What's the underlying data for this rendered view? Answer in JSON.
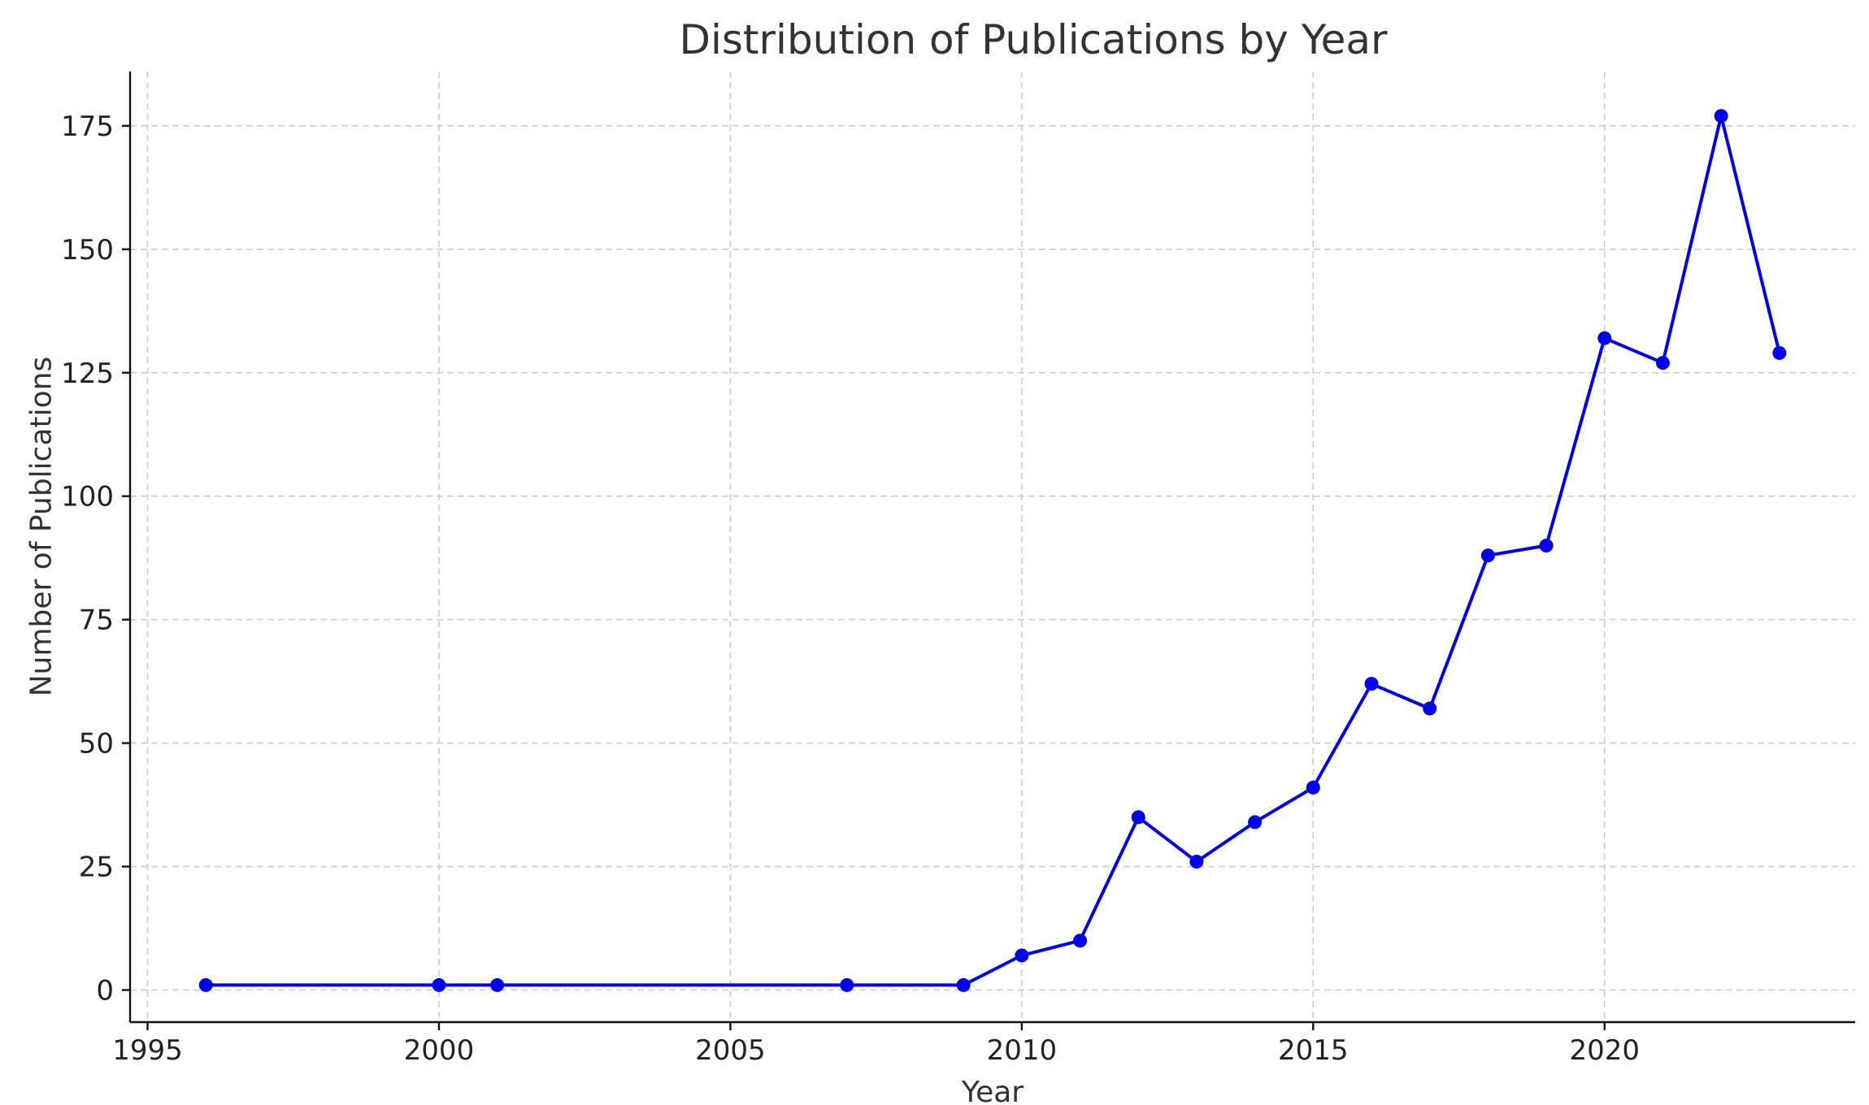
{
  "chart_data": {
    "type": "line",
    "title": "Distribution of Publications by Year",
    "xlabel": "Year",
    "ylabel": "Number of Publications",
    "xlim": [
      1994.7,
      2024.3
    ],
    "ylim": [
      -6.5,
      186
    ],
    "xticks": [
      1995,
      2000,
      2005,
      2010,
      2015,
      2020
    ],
    "yticks": [
      0,
      25,
      50,
      75,
      100,
      125,
      150,
      175
    ],
    "grid": true,
    "series": [
      {
        "color": "#0000ee",
        "marker": "circle",
        "x": [
          1996,
          2000,
          2001,
          2007,
          2009,
          2010,
          2011,
          2012,
          2013,
          2014,
          2015,
          2016,
          2017,
          2018,
          2019,
          2020,
          2021,
          2022,
          2023
        ],
        "y": [
          1,
          1,
          1,
          1,
          1,
          7,
          10,
          35,
          26,
          34,
          41,
          62,
          57,
          88,
          90,
          132,
          127,
          177,
          129
        ]
      }
    ]
  }
}
